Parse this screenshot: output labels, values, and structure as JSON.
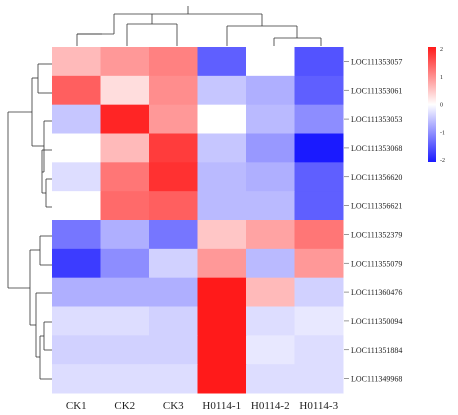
{
  "chart_data": {
    "type": "heatmap",
    "rows": [
      "LOC111353057",
      "LOC111353061",
      "LOC111353053",
      "LOC111353068",
      "LOC111356620",
      "LOC111356621",
      "LOC111352379",
      "LOC111355079",
      "LOC111360476",
      "LOC111350094",
      "LOC111351884",
      "LOC111349968"
    ],
    "columns": [
      "CK1",
      "CK2",
      "CK3",
      "H0114-1",
      "H0114-2",
      "H0114-3"
    ],
    "values": [
      [
        0.6,
        0.9,
        1.1,
        -1.4,
        0.0,
        -1.5
      ],
      [
        1.4,
        0.3,
        1.0,
        -0.5,
        -0.7,
        -1.4
      ],
      [
        -0.5,
        1.9,
        0.9,
        0.0,
        -0.6,
        -1.0
      ],
      [
        0.0,
        0.6,
        1.7,
        -0.5,
        -0.9,
        -2.0
      ],
      [
        -0.3,
        1.2,
        1.8,
        -0.6,
        -0.7,
        -1.4
      ],
      [
        0.0,
        1.3,
        1.4,
        -0.6,
        -0.6,
        -1.4
      ],
      [
        -1.2,
        -0.7,
        -1.2,
        0.5,
        0.8,
        1.2
      ],
      [
        -1.7,
        -1.0,
        -0.4,
        0.9,
        -0.6,
        0.9
      ],
      [
        -0.7,
        -0.7,
        -0.7,
        2.0,
        0.6,
        -0.4
      ],
      [
        -0.3,
        -0.3,
        -0.4,
        2.0,
        -0.3,
        -0.2
      ],
      [
        -0.4,
        -0.4,
        -0.4,
        2.0,
        -0.2,
        -0.3
      ],
      [
        -0.3,
        -0.3,
        -0.3,
        2.0,
        -0.3,
        -0.3
      ]
    ],
    "scale": {
      "min": -2,
      "max": 2,
      "low_color": "#1a1aff",
      "mid_color": "#ffffff",
      "high_color": "#ff1a1a"
    },
    "legend_ticks": [
      "2",
      "1",
      "0",
      "-1",
      "-2"
    ],
    "legend_placement": "right",
    "grid": false
  }
}
